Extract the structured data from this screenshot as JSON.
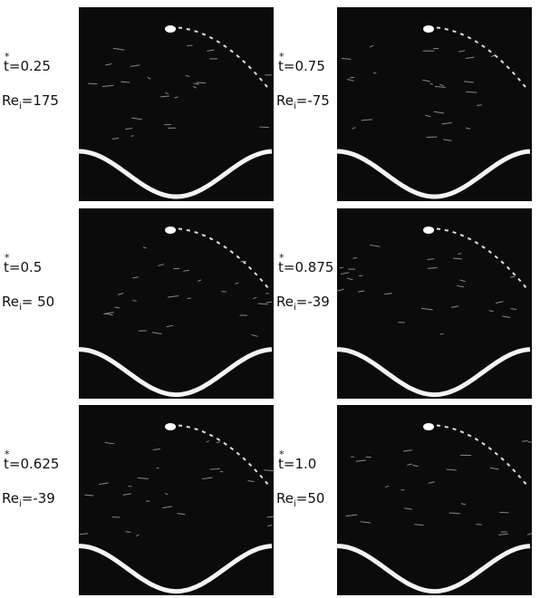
{
  "panels": [
    {
      "t_symbol": "t",
      "t_mark": "*",
      "t_value": "=0.25",
      "re_symbol": "Re",
      "re_sub": "i",
      "re_value": "=175"
    },
    {
      "t_symbol": "t",
      "t_mark": "*",
      "t_value": "=0.75",
      "re_symbol": "Re",
      "re_sub": "i",
      "re_value": "=-75"
    },
    {
      "t_symbol": "t",
      "t_mark": "*",
      "t_value": "=0.5",
      "re_symbol": "Re",
      "re_sub": "i",
      "re_value": "= 50"
    },
    {
      "t_symbol": "t",
      "t_mark": "*",
      "t_value": "=0.875",
      "re_symbol": "Re",
      "re_sub": "i",
      "re_value": "=-39"
    },
    {
      "t_symbol": "t",
      "t_mark": "*",
      "t_value": "=0.625",
      "re_symbol": "Re",
      "re_sub": "i",
      "re_value": "=-39"
    },
    {
      "t_symbol": "t",
      "t_mark": "*",
      "t_value": "=1.0",
      "re_symbol": "Re",
      "re_sub": "i",
      "re_value": "=50"
    }
  ]
}
